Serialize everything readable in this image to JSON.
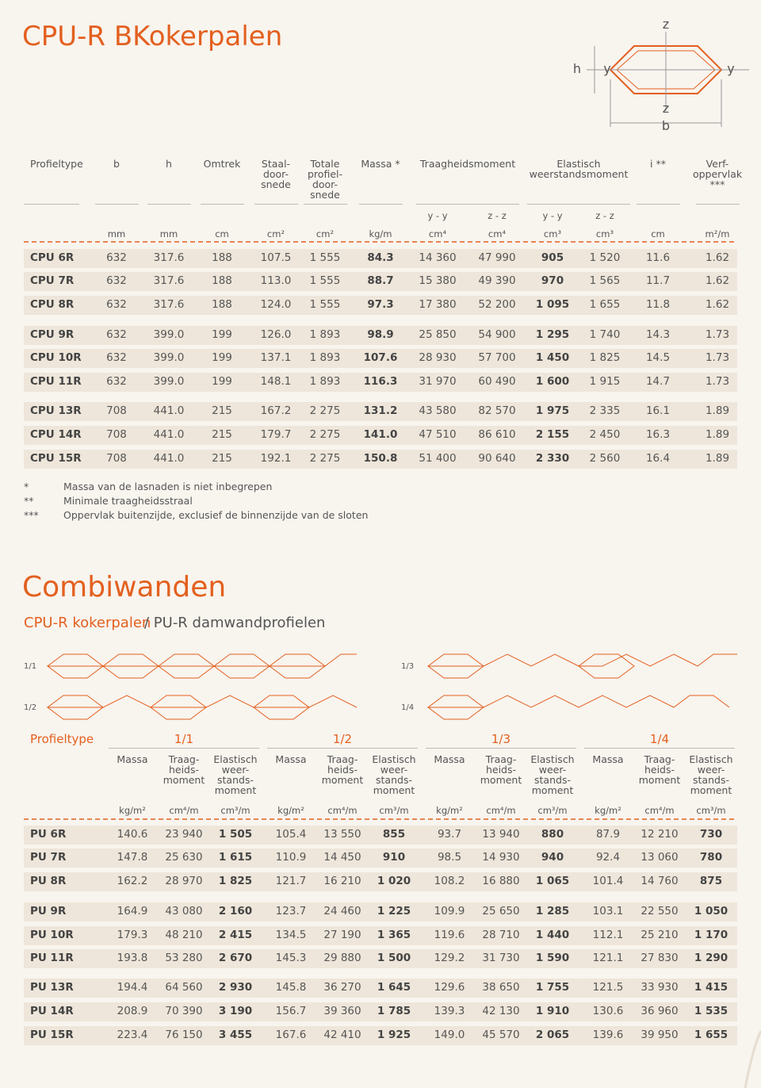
{
  "header": {
    "title": "CPU-R BKokerpalen"
  },
  "diagram": {
    "labels": [
      "z",
      "h",
      "y",
      "y",
      "z",
      "b"
    ]
  },
  "table1": {
    "headers": [
      "Profieltype",
      "b",
      "h",
      "Omtrek",
      "Staal-\ndoor-\nsnede",
      "Totale\nprofiel-\ndoor-\nsnede",
      "Massa *",
      "Traagheidsmoment",
      "Elastisch\nweerstandsmoment",
      "i **",
      "Verf-\noppervlak\n***"
    ],
    "subheaders": [
      "y - y",
      "z - z",
      "y - y",
      "z - z"
    ],
    "units": [
      "mm",
      "mm",
      "cm",
      "cm²",
      "cm²",
      "kg/m",
      "cm⁴",
      "cm⁴",
      "cm³",
      "cm³",
      "cm",
      "m²/m"
    ],
    "rows": [
      [
        "CPU 6R",
        "632",
        "317.6",
        "188",
        "107.5",
        "1 555",
        "84.3",
        "14 360",
        "47 990",
        "905",
        "1 520",
        "11.6",
        "1.62"
      ],
      [
        "CPU 7R",
        "632",
        "317.6",
        "188",
        "113.0",
        "1 555",
        "88.7",
        "15 380",
        "49 390",
        "970",
        "1 565",
        "11.7",
        "1.62"
      ],
      [
        "CPU 8R",
        "632",
        "317.6",
        "188",
        "124.0",
        "1 555",
        "97.3",
        "17 380",
        "52 200",
        "1 095",
        "1 655",
        "11.8",
        "1.62"
      ],
      [
        "CPU 9R",
        "632",
        "399.0",
        "199",
        "126.0",
        "1 893",
        "98.9",
        "25 850",
        "54 900",
        "1 295",
        "1 740",
        "14.3",
        "1.73"
      ],
      [
        "CPU 10R",
        "632",
        "399.0",
        "199",
        "137.1",
        "1 893",
        "107.6",
        "28 930",
        "57 700",
        "1 450",
        "1 825",
        "14.5",
        "1.73"
      ],
      [
        "CPU 11R",
        "632",
        "399.0",
        "199",
        "148.1",
        "1 893",
        "116.3",
        "31 970",
        "60 490",
        "1 600",
        "1 915",
        "14.7",
        "1.73"
      ],
      [
        "CPU 13R",
        "708",
        "441.0",
        "215",
        "167.2",
        "2 275",
        "131.2",
        "43 580",
        "82 570",
        "1 975",
        "2 335",
        "16.1",
        "1.89"
      ],
      [
        "CPU 14R",
        "708",
        "441.0",
        "215",
        "179.7",
        "2 275",
        "141.0",
        "47 510",
        "86 610",
        "2 155",
        "2 450",
        "16.3",
        "1.89"
      ],
      [
        "CPU 15R",
        "708",
        "441.0",
        "215",
        "192.1",
        "2 275",
        "150.8",
        "51 400",
        "90 640",
        "2 330",
        "2 560",
        "16.4",
        "1.89"
      ]
    ]
  },
  "notes": [
    [
      "*",
      "Massa van de lasnaden is niet inbegrepen"
    ],
    [
      "**",
      "Minimale traagheidsstraal"
    ],
    [
      "***",
      "Oppervlak buitenzijde, exclusief de binnenzijde van de sloten"
    ]
  ],
  "section2": {
    "title": "Combiwanden",
    "subtitle_highlight": "CPU-R kokerpalen",
    "subtitle_rest": "/ PU-R damwandprofielen",
    "diagram_labels": [
      "1/1",
      "1/3",
      "1/2",
      "1/4"
    ]
  },
  "table2": {
    "first_header": "Profieltype",
    "groups": [
      "1/1",
      "1/2",
      "1/3",
      "1/4"
    ],
    "subheaders": [
      "Massa",
      "Traag-\nheids-\nmoment",
      "Elastisch\nweer-\nstands-\nmoment"
    ],
    "units": [
      "kg/m²",
      "cm⁴/m",
      "cm³/m"
    ],
    "rows": [
      [
        "PU 6R",
        "140.6",
        "23 940",
        "1 505",
        "105.4",
        "13 550",
        "855",
        "93.7",
        "13 940",
        "880",
        "87.9",
        "12 210",
        "730"
      ],
      [
        "PU 7R",
        "147.8",
        "25 630",
        "1 615",
        "110.9",
        "14 450",
        "910",
        "98.5",
        "14 930",
        "940",
        "92.4",
        "13 060",
        "780"
      ],
      [
        "PU 8R",
        "162.2",
        "28 970",
        "1 825",
        "121.7",
        "16 210",
        "1 020",
        "108.2",
        "16 880",
        "1 065",
        "101.4",
        "14 760",
        "875"
      ],
      [
        "PU 9R",
        "164.9",
        "43 080",
        "2 160",
        "123.7",
        "24 460",
        "1 225",
        "109.9",
        "25 650",
        "1 285",
        "103.1",
        "22 550",
        "1 050"
      ],
      [
        "PU 10R",
        "179.3",
        "48 210",
        "2 415",
        "134.5",
        "27 190",
        "1 365",
        "119.6",
        "28 710",
        "1 440",
        "112.1",
        "25 210",
        "1 170"
      ],
      [
        "PU 11R",
        "193.8",
        "53 280",
        "2 670",
        "145.3",
        "29 880",
        "1 500",
        "129.2",
        "31 730",
        "1 590",
        "121.1",
        "27 830",
        "1 290"
      ],
      [
        "PU 13R",
        "194.4",
        "64 560",
        "2 930",
        "145.8",
        "36 270",
        "1 645",
        "129.6",
        "38 650",
        "1 755",
        "121.5",
        "33 930",
        "1 415"
      ],
      [
        "PU 14R",
        "208.9",
        "70 390",
        "3 190",
        "156.7",
        "39 360",
        "1 785",
        "139.3",
        "42 130",
        "1 910",
        "130.6",
        "36 960",
        "1 535"
      ],
      [
        "PU 15R",
        "223.4",
        "76 150",
        "3 455",
        "167.6",
        "42 410",
        "1 925",
        "149.0",
        "45 570",
        "2 065",
        "139.6",
        "39 950",
        "1 655"
      ]
    ]
  }
}
